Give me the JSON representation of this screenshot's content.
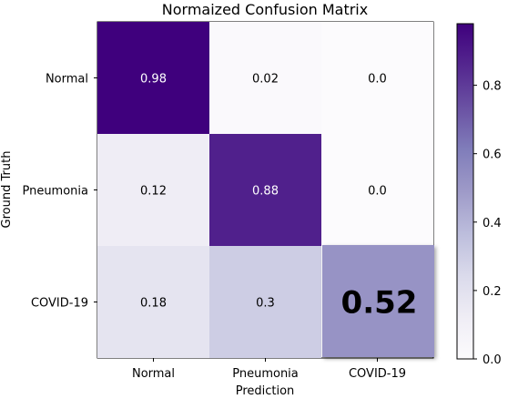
{
  "chart_data": {
    "type": "heatmap",
    "title": "Normaized Confusion Matrix",
    "xlabel": "Prediction",
    "ylabel": "Ground Truth",
    "x_categories": [
      "Normal",
      "Pneumonia",
      "COVID-19"
    ],
    "y_categories": [
      "Normal",
      "Pneumonia",
      "COVID-19"
    ],
    "values": [
      [
        0.98,
        0.02,
        0.0
      ],
      [
        0.12,
        0.88,
        0.0
      ],
      [
        0.18,
        0.3,
        0.52
      ]
    ],
    "value_labels": [
      [
        "0.98",
        "0.02",
        "0.0"
      ],
      [
        "0.12",
        "0.88",
        "0.0"
      ],
      [
        "0.18",
        "0.3",
        "0.52"
      ]
    ],
    "highlighted_cell": [
      2,
      2
    ],
    "colormap": "Purples",
    "color_range": [
      0.0,
      0.98
    ],
    "colorbar_ticks": [
      "0.0",
      "0.2",
      "0.4",
      "0.6",
      "0.8"
    ],
    "colorbar_tick_values": [
      0.0,
      0.2,
      0.4,
      0.6,
      0.8
    ]
  }
}
